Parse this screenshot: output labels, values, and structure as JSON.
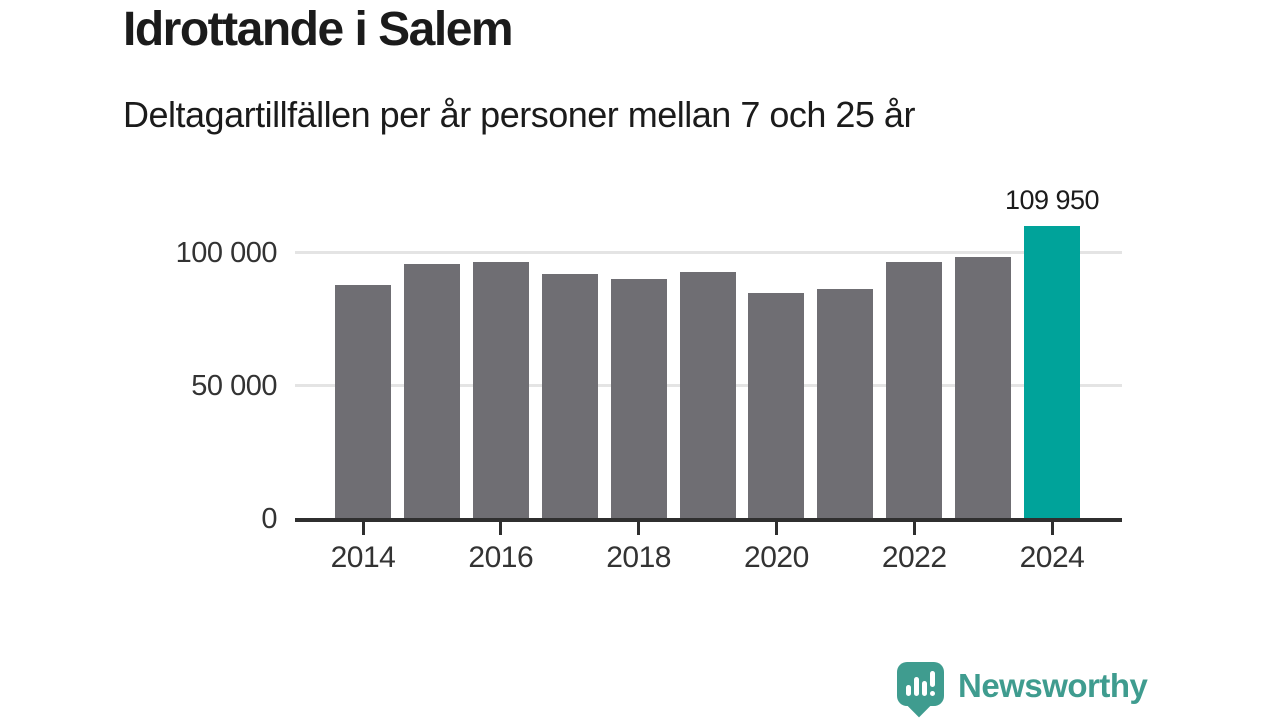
{
  "header": {
    "title": "Idrottande i Salem",
    "subtitle": "Deltagartillfällen per år personer mellan 7 och 25 år"
  },
  "chart_data": {
    "type": "bar",
    "title": "Idrottande i Salem",
    "subtitle": "Deltagartillfällen per år personer mellan 7 och 25 år",
    "categories": [
      "2014",
      "2015",
      "2016",
      "2017",
      "2018",
      "2019",
      "2020",
      "2021",
      "2022",
      "2023",
      "2024"
    ],
    "values": [
      87600,
      95400,
      96200,
      91800,
      89800,
      92500,
      84600,
      86100,
      96200,
      98000,
      109950
    ],
    "highlight_index": 10,
    "highlight_value_label": "109 950",
    "ylim": [
      0,
      115000
    ],
    "yticks": [
      {
        "value": 0,
        "label": "0"
      },
      {
        "value": 50000,
        "label": "50 000"
      },
      {
        "value": 100000,
        "label": "100 000"
      }
    ],
    "xticks": [
      {
        "index": 0,
        "label": "2014"
      },
      {
        "index": 2,
        "label": "2016"
      },
      {
        "index": 4,
        "label": "2018"
      },
      {
        "index": 6,
        "label": "2020"
      },
      {
        "index": 8,
        "label": "2022"
      },
      {
        "index": 10,
        "label": "2024"
      }
    ],
    "grid": "horizontal",
    "legend": "none",
    "colors": {
      "bar": "#6F6E73",
      "highlight": "#00A39A",
      "axis": "#2F2F2F",
      "grid": "#E4E4E4",
      "tick_label": "#333333"
    }
  },
  "footer": {
    "brand": "Newsworthy",
    "brand_color": "#3F9C8F"
  }
}
